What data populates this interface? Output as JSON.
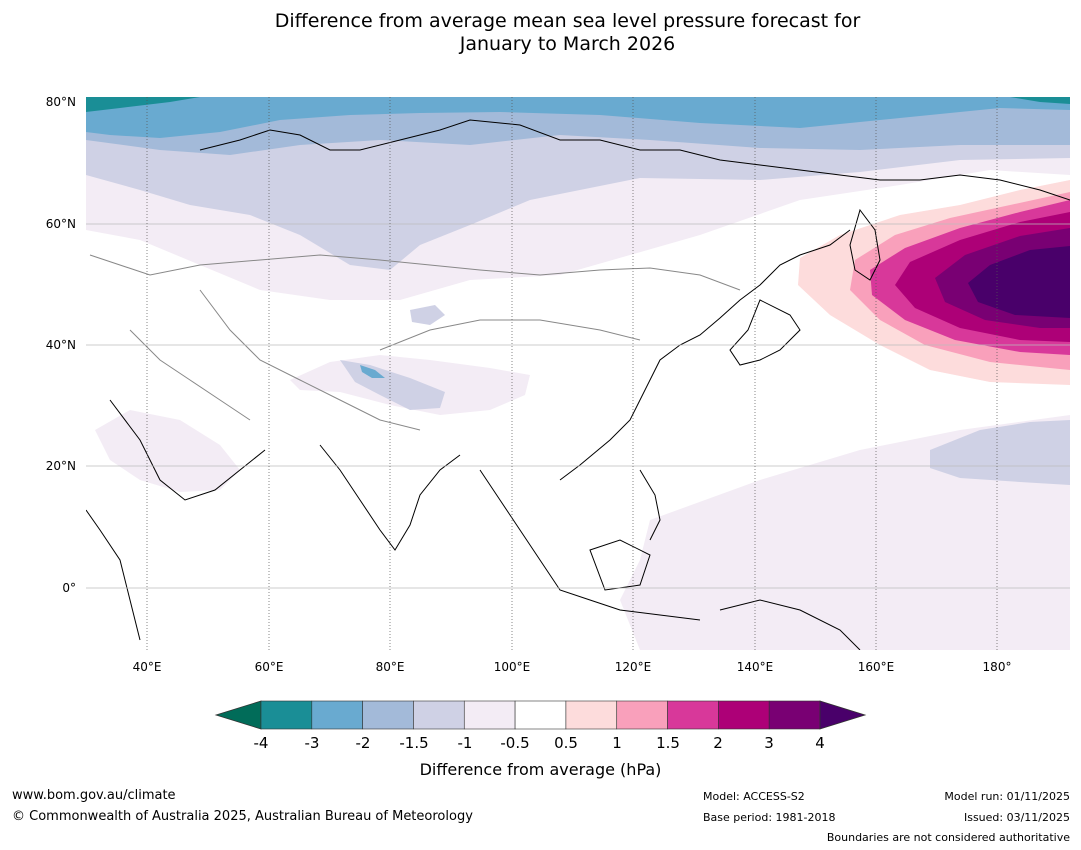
{
  "title": {
    "line1": "Difference from average mean sea level pressure forecast for",
    "line2": "January to March 2026"
  },
  "map": {
    "region": "Asia",
    "lat_labels": [
      "80°N",
      "60°N",
      "40°N",
      "20°N",
      "0°"
    ],
    "lon_labels": [
      "40°E",
      "60°E",
      "80°E",
      "100°E",
      "120°E",
      "140°E",
      "160°E",
      "180°"
    ]
  },
  "colorbar": {
    "ticks": [
      "-4",
      "-3",
      "-2",
      "-1.5",
      "-1",
      "-0.5",
      "0.5",
      "1",
      "1.5",
      "2",
      "3",
      "4"
    ],
    "colors": [
      "#1a8e96",
      "#69aad0",
      "#a3bad9",
      "#cfd1e5",
      "#f3ecf5",
      "#ffffff",
      "#fddcdc",
      "#f9a0bb",
      "#d8389a",
      "#ad0077",
      "#790073"
    ],
    "under_color": "#016c59",
    "over_color": "#49006a",
    "label": "Difference from average (hPa)"
  },
  "footer": {
    "website": "www.bom.gov.au/climate",
    "copyright": "© Commonwealth of Australia 2025, Australian Bureau of Meteorology",
    "model": "Model: ACCESS-S2",
    "base_period": "Base period: 1981-2018",
    "model_run": "Model run: 01/11/2025",
    "issued": "Issued: 03/11/2025",
    "disclaimer": "Boundaries are not considered authoritative"
  }
}
